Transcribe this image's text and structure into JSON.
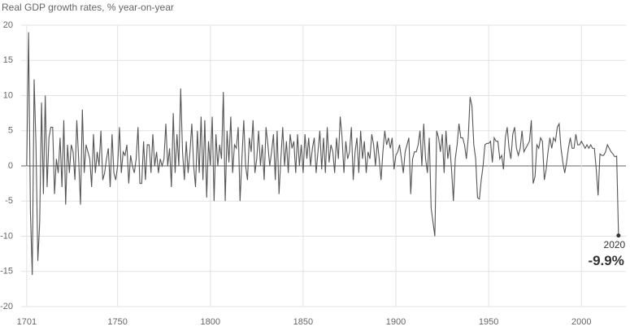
{
  "chart_data": {
    "type": "line",
    "title": "Real GDP growth rates, % year-on-year",
    "color": "#555555",
    "xlim": [
      1698,
      2024
    ],
    "ylim": [
      -20,
      20
    ],
    "xticks": [
      1701,
      1750,
      1800,
      1850,
      1900,
      1950,
      2000
    ],
    "yticks": [
      -20,
      -15,
      -10,
      -5,
      0,
      5,
      10,
      15,
      20
    ],
    "grid": true,
    "x": [
      1701,
      1702,
      1703,
      1704,
      1705,
      1706,
      1707,
      1708,
      1709,
      1710,
      1711,
      1712,
      1713,
      1714,
      1715,
      1716,
      1717,
      1718,
      1719,
      1720,
      1721,
      1722,
      1723,
      1724,
      1725,
      1726,
      1727,
      1728,
      1729,
      1730,
      1731,
      1732,
      1733,
      1734,
      1735,
      1736,
      1737,
      1738,
      1739,
      1740,
      1741,
      1742,
      1743,
      1744,
      1745,
      1746,
      1747,
      1748,
      1749,
      1750,
      1751,
      1752,
      1753,
      1754,
      1755,
      1756,
      1757,
      1758,
      1759,
      1760,
      1761,
      1762,
      1763,
      1764,
      1765,
      1766,
      1767,
      1768,
      1769,
      1770,
      1771,
      1772,
      1773,
      1774,
      1775,
      1776,
      1777,
      1778,
      1779,
      1780,
      1781,
      1782,
      1783,
      1784,
      1785,
      1786,
      1787,
      1788,
      1789,
      1790,
      1791,
      1792,
      1793,
      1794,
      1795,
      1796,
      1797,
      1798,
      1799,
      1800,
      1801,
      1802,
      1803,
      1804,
      1805,
      1806,
      1807,
      1808,
      1809,
      1810,
      1811,
      1812,
      1813,
      1814,
      1815,
      1816,
      1817,
      1818,
      1819,
      1820,
      1821,
      1822,
      1823,
      1824,
      1825,
      1826,
      1827,
      1828,
      1829,
      1830,
      1831,
      1832,
      1833,
      1834,
      1835,
      1836,
      1837,
      1838,
      1839,
      1840,
      1841,
      1842,
      1843,
      1844,
      1845,
      1846,
      1847,
      1848,
      1849,
      1850,
      1851,
      1852,
      1853,
      1854,
      1855,
      1856,
      1857,
      1858,
      1859,
      1860,
      1861,
      1862,
      1863,
      1864,
      1865,
      1866,
      1867,
      1868,
      1869,
      1870,
      1871,
      1872,
      1873,
      1874,
      1875,
      1876,
      1877,
      1878,
      1879,
      1880,
      1881,
      1882,
      1883,
      1884,
      1885,
      1886,
      1887,
      1888,
      1889,
      1890,
      1891,
      1892,
      1893,
      1894,
      1895,
      1896,
      1897,
      1898,
      1899,
      1900,
      1901,
      1902,
      1903,
      1904,
      1905,
      1906,
      1907,
      1908,
      1909,
      1910,
      1911,
      1912,
      1913,
      1914,
      1915,
      1916,
      1917,
      1918,
      1919,
      1920,
      1921,
      1922,
      1923,
      1924,
      1925,
      1926,
      1927,
      1928,
      1929,
      1930,
      1931,
      1932,
      1933,
      1934,
      1935,
      1936,
      1937,
      1938,
      1939,
      1940,
      1941,
      1942,
      1943,
      1944,
      1945,
      1946,
      1947,
      1948,
      1949,
      1950,
      1951,
      1952,
      1953,
      1954,
      1955,
      1956,
      1957,
      1958,
      1959,
      1960,
      1961,
      1962,
      1963,
      1964,
      1965,
      1966,
      1967,
      1968,
      1969,
      1970,
      1971,
      1972,
      1973,
      1974,
      1975,
      1976,
      1977,
      1978,
      1979,
      1980,
      1981,
      1982,
      1983,
      1984,
      1985,
      1986,
      1987,
      1988,
      1989,
      1990,
      1991,
      1992,
      1993,
      1994,
      1995,
      1996,
      1997,
      1998,
      1999,
      2000,
      2001,
      2002,
      2003,
      2004,
      2005,
      2006,
      2007,
      2008,
      2009,
      2010,
      2011,
      2012,
      2013,
      2014,
      2015,
      2016,
      2017,
      2018,
      2019,
      2020
    ],
    "values": [
      0,
      19,
      -6.5,
      -15.5,
      12.3,
      3,
      -13.5,
      -8,
      9,
      -4,
      10,
      -3,
      4,
      5.5,
      5.5,
      -4,
      1,
      -1,
      4,
      -3,
      6.5,
      -5.5,
      3,
      -1,
      3,
      2,
      -2,
      6.5,
      1,
      -5.5,
      8,
      -1,
      3,
      2,
      1,
      -3,
      4.5,
      -1,
      2,
      0,
      5,
      -2,
      -1,
      1,
      2.5,
      -3,
      4.5,
      -1,
      -2,
      0,
      5.5,
      -1,
      2,
      1.5,
      3,
      -2.5,
      1.5,
      0,
      -1,
      1,
      5.5,
      -2.5,
      -2.5,
      3.5,
      -2,
      3,
      3,
      -1,
      4.5,
      0,
      2,
      -1,
      1,
      0,
      1,
      6,
      0,
      2.5,
      -3,
      7.5,
      -1,
      4.5,
      0,
      11,
      2,
      -2,
      3.5,
      -1,
      2,
      6,
      0,
      -3,
      5,
      -1,
      7,
      -2,
      6.5,
      -4.5,
      3.5,
      0,
      7,
      -5,
      4.5,
      0,
      3,
      1,
      10.5,
      -5,
      5,
      0.5,
      7,
      -1,
      3,
      2.5,
      5.5,
      -5,
      1,
      6.5,
      0,
      -2,
      4,
      2,
      6.5,
      -1,
      1,
      5,
      0,
      3,
      -2,
      5.5,
      3,
      0,
      2,
      4.5,
      -2,
      5,
      -4,
      1,
      5.5,
      0,
      3.5,
      -1,
      4.5,
      2.5,
      3.5,
      -1,
      4.5,
      0,
      3,
      -1,
      4.5,
      1,
      4,
      0,
      2.5,
      4,
      -1,
      2,
      5,
      -0.5,
      4,
      -1,
      5.5,
      0.5,
      3,
      2,
      -1,
      4,
      1,
      7,
      4,
      -1,
      3.5,
      1,
      2,
      5.5,
      -2,
      2,
      4,
      -1,
      5,
      1,
      3.5,
      -1,
      2,
      1,
      4.5,
      3,
      0,
      3.5,
      1,
      -2,
      2,
      5,
      3,
      4,
      2.5,
      4,
      -0.5,
      1.5,
      2,
      3,
      1,
      -1,
      2,
      3,
      4,
      -4,
      1,
      2,
      2,
      3,
      5,
      0,
      6,
      1,
      -1,
      4,
      -6,
      -8,
      -10,
      5,
      4,
      2,
      4.5,
      -1,
      5,
      1,
      3,
      -0.5,
      -5,
      1,
      3,
      6,
      4,
      4,
      3,
      1,
      4,
      9.8,
      8.5,
      3,
      1,
      -4.5,
      -4.7,
      -2,
      0,
      3,
      3.2,
      3.2,
      3.5,
      0.5,
      4,
      3.5,
      3.5,
      1,
      1.5,
      -0.5,
      4,
      5.5,
      2.5,
      1,
      4.5,
      5.5,
      2.5,
      1.5,
      2.5,
      5,
      2,
      2.5,
      3,
      3.5,
      6.5,
      -2.5,
      -1.5,
      3,
      2.5,
      4,
      3.5,
      -2,
      -0.5,
      2,
      4,
      2.5,
      4,
      3.5,
      5.5,
      6,
      2.5,
      0.5,
      -1,
      0.5,
      2.5,
      4,
      2.5,
      2.5,
      4.5,
      3,
      3,
      3.5,
      3,
      2.5,
      3,
      2.5,
      3,
      2.5,
      2.5,
      -0.5,
      -4.2,
      1.7,
      1.5,
      1.5,
      2,
      3,
      2.5,
      2,
      1.7,
      1.3,
      1.4,
      -9.9
    ],
    "value_labels": [
      null,
      null,
      null,
      null,
      null,
      null,
      null,
      null,
      null,
      null,
      null,
      null,
      null,
      null,
      null,
      null,
      null,
      null,
      null,
      null,
      null,
      null,
      null,
      null,
      null,
      null,
      null,
      null,
      null,
      null,
      null,
      null,
      null,
      null,
      null,
      null,
      null,
      null,
      null,
      null,
      null,
      null,
      null,
      null,
      null,
      null,
      null,
      null,
      null,
      null,
      null,
      null,
      null,
      null,
      null,
      null,
      null,
      null,
      null,
      null,
      null,
      null,
      null,
      null,
      null,
      null,
      null,
      null,
      null,
      null,
      null,
      null,
      null,
      null,
      null,
      null,
      null,
      null,
      null,
      null,
      null,
      null,
      null,
      null,
      null,
      null,
      null,
      null,
      null,
      null,
      null,
      null,
      null,
      null,
      null,
      null,
      null,
      null,
      null,
      null,
      null,
      null,
      null,
      null,
      null,
      null,
      null,
      null,
      null,
      null,
      null,
      null,
      null,
      null,
      null,
      null,
      null,
      null,
      null,
      null,
      null,
      null,
      null,
      null,
      null,
      null,
      null,
      null,
      null,
      null,
      null,
      null,
      null,
      null,
      null,
      null,
      null,
      null,
      null,
      null,
      null,
      null,
      null,
      null,
      null,
      null,
      null,
      null,
      null,
      null,
      null,
      null,
      null,
      null,
      null,
      null,
      null,
      null,
      null,
      null,
      null,
      null,
      null,
      null,
      null,
      null,
      null,
      null,
      null,
      null,
      null,
      null,
      null,
      null,
      null,
      null,
      null,
      null,
      null,
      null,
      null,
      null,
      null,
      null,
      null,
      null,
      null,
      null,
      null,
      null,
      null,
      null,
      null,
      null,
      null,
      null,
      null,
      null,
      null,
      null,
      null,
      null,
      null,
      null,
      null,
      null,
      null,
      null,
      null,
      null,
      null,
      null,
      null,
      null,
      null,
      null,
      null,
      null,
      null,
      null,
      null,
      null,
      null,
      null,
      null,
      null,
      null,
      null,
      null,
      null,
      null,
      null,
      null,
      null,
      null,
      null,
      null,
      null,
      null,
      null,
      null,
      null,
      null,
      null,
      null,
      null,
      null,
      null,
      null,
      null,
      null,
      null,
      null,
      null,
      null,
      null,
      null,
      null,
      null,
      null,
      null,
      null,
      null,
      null,
      null,
      null,
      null,
      null,
      null,
      null,
      null,
      null,
      null,
      null,
      null,
      null,
      null,
      null,
      null,
      null,
      null,
      null,
      null,
      null,
      null,
      null,
      null,
      null,
      null,
      null,
      null,
      null,
      null,
      null,
      null,
      null,
      null,
      null,
      null,
      null,
      null,
      null,
      null,
      null,
      null,
      null,
      null,
      null,
      null,
      null,
      null,
      null,
      null,
      null,
      null,
      null,
      null,
      null,
      null,
      "-9.9%"
    ]
  }
}
